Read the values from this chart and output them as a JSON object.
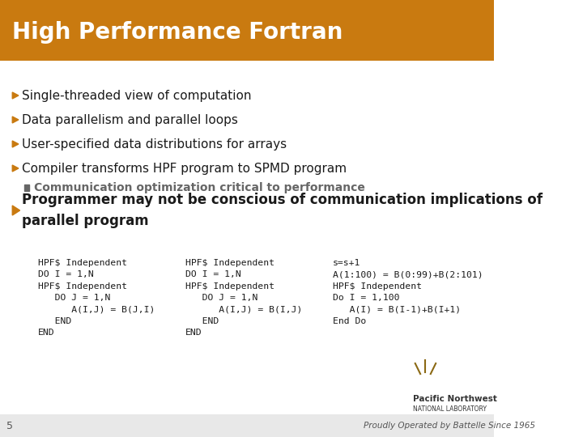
{
  "title": "High Performance Fortran",
  "title_bg": "#C97A10",
  "title_color": "#FFFFFF",
  "bg_color": "#FFFFFF",
  "bullet_color": "#C97A10",
  "text_color": "#1a1a1a",
  "bullets": [
    "Single-threaded view of computation",
    "Data parallelism and parallel loops",
    "User-specified data distributions for arrays",
    "Compiler transforms HPF program to SPMD program"
  ],
  "sub_bullet": "Communication optimization critical to performance",
  "sub_bullet_color": "#666666",
  "last_bullet": "Programmer may not be conscious of communication implications of\nparallel program",
  "code_col1": "HPF$ Independent\nDO I = 1,N\nHPF$ Independent\n   DO J = 1,N\n      A(I,J) = B(J,I)\n   END\nEND",
  "code_col2": "HPF$ Independent\nDO I = 1,N\nHPF$ Independent\n   DO J = 1,N\n      A(I,J) = B(I,J)\n   END\nEND",
  "code_col3": "s=s+1\nA(1:100) = B(0:99)+B(2:101)\nHPF$ Independent\nDo I = 1,100\n   A(I) = B(I-1)+B(I+1)\nEnd Do",
  "footer_text": "Proudly Operated by Battelle Since 1965",
  "page_num": "5",
  "logo_text": "Pacific Northwest\nNATIONAL LABORATORY"
}
